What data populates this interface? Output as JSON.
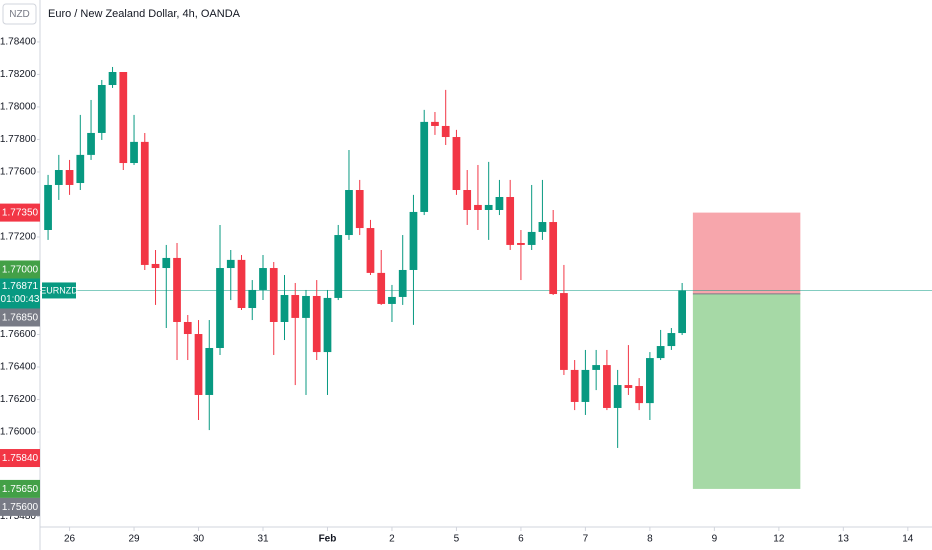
{
  "chart_data": {
    "type": "candlestick",
    "title": "Euro / New Zealand Dollar, 4h, OANDA",
    "axis_currency": "NZD",
    "open": [
      1.77243,
      1.7752,
      1.77612,
      1.77532,
      1.77705,
      1.7784,
      1.78135,
      1.78215,
      1.77655,
      1.77785,
      1.77034,
      1.77009,
      1.77071,
      1.76677,
      1.76603,
      1.76228,
      1.76517,
      1.77009,
      1.77059,
      1.76763,
      1.76874,
      1.77009,
      1.76677,
      1.76843,
      1.76702,
      1.76837,
      1.76492,
      1.76825,
      1.77212,
      1.77489,
      1.77255,
      1.76979,
      1.76788,
      1.76831,
      1.76997,
      1.77354,
      1.77908,
      1.77883,
      1.77815,
      1.77489,
      1.77397,
      1.77366,
      1.77366,
      1.77446,
      1.77163,
      1.77151,
      1.77231,
      1.77292,
      1.76855,
      1.76382,
      1.76185,
      1.76382,
      1.76412,
      1.76148,
      1.76289,
      1.76283,
      1.76178,
      1.76455,
      1.76529,
      1.76609
    ],
    "high": [
      1.77582,
      1.77705,
      1.77674,
      1.77951,
      1.78043,
      1.78166,
      1.78246,
      1.78215,
      1.77951,
      1.7784,
      1.7712,
      1.77151,
      1.77163,
      1.7672,
      1.76689,
      1.76689,
      1.77274,
      1.7712,
      1.77089,
      1.76935,
      1.77089,
      1.77046,
      1.76966,
      1.76917,
      1.76874,
      1.76935,
      1.76874,
      1.77274,
      1.77735,
      1.77551,
      1.77305,
      1.7712,
      1.76905,
      1.77212,
      1.77459,
      1.77982,
      1.77969,
      1.78105,
      1.77859,
      1.77612,
      1.77643,
      1.77662,
      1.77551,
      1.77551,
      1.77243,
      1.7752,
      1.77551,
      1.77366,
      1.77028,
      1.76443,
      1.76505,
      1.76505,
      1.76505,
      1.76382,
      1.76535,
      1.76332,
      1.76492,
      1.76628,
      1.7664,
      1.76917
    ],
    "low": [
      1.77182,
      1.77428,
      1.77459,
      1.77489,
      1.77674,
      1.77797,
      1.78117,
      1.77612,
      1.77643,
      1.76997,
      1.76782,
      1.7664,
      1.76443,
      1.76443,
      1.76074,
      1.76012,
      1.76474,
      1.76812,
      1.76751,
      1.76689,
      1.76812,
      1.76474,
      1.76566,
      1.76289,
      1.76228,
      1.76443,
      1.76228,
      1.76812,
      1.77182,
      1.77212,
      1.76966,
      1.76782,
      1.76677,
      1.76782,
      1.76659,
      1.77335,
      1.77828,
      1.77766,
      1.77459,
      1.77274,
      1.77243,
      1.77182,
      1.77335,
      1.7712,
      1.76935,
      1.7712,
      1.77182,
      1.76843,
      1.76351,
      1.76135,
      1.76105,
      1.76258,
      1.76135,
      1.75902,
      1.76228,
      1.76135,
      1.76074,
      1.76443,
      1.76505,
      1.76597
    ],
    "close": [
      1.7752,
      1.77612,
      1.7752,
      1.77705,
      1.7784,
      1.78135,
      1.78215,
      1.77655,
      1.77785,
      1.77028,
      1.77009,
      1.77071,
      1.76677,
      1.76603,
      1.76228,
      1.76517,
      1.77009,
      1.77059,
      1.76763,
      1.76874,
      1.77009,
      1.76677,
      1.76843,
      1.76702,
      1.76837,
      1.76492,
      1.76825,
      1.77212,
      1.77489,
      1.77255,
      1.76979,
      1.76788,
      1.76831,
      1.76997,
      1.77354,
      1.77908,
      1.77883,
      1.77815,
      1.77489,
      1.77366,
      1.77366,
      1.77397,
      1.77446,
      1.77151,
      1.77151,
      1.77231,
      1.77292,
      1.76849,
      1.76382,
      1.76185,
      1.76382,
      1.76412,
      1.76148,
      1.76289,
      1.76271,
      1.76178,
      1.76455,
      1.76529,
      1.76609,
      1.76871
    ],
    "up_color": "#089981",
    "down_color": "#f23645",
    "xlim": [
      -0.75,
      82.25
    ],
    "xticks": [
      {
        "value": 2,
        "label": "26"
      },
      {
        "value": 8,
        "label": "29"
      },
      {
        "value": 14,
        "label": "30"
      },
      {
        "value": 20,
        "label": "31"
      },
      {
        "value": 26,
        "label": "Feb"
      },
      {
        "value": 32,
        "label": "2"
      },
      {
        "value": 38,
        "label": "5"
      },
      {
        "value": 44,
        "label": "6"
      },
      {
        "value": 50,
        "label": "7"
      },
      {
        "value": 56,
        "label": "8"
      },
      {
        "value": 62,
        "label": "9"
      },
      {
        "value": 68,
        "label": "12"
      },
      {
        "value": 74,
        "label": "13"
      },
      {
        "value": 80,
        "label": "14"
      }
    ],
    "ylim": [
      1.75428,
      1.78658
    ],
    "yticks": [
      {
        "value": 1.784,
        "label": "1.78400"
      },
      {
        "value": 1.782,
        "label": "1.78200"
      },
      {
        "value": 1.78,
        "label": "1.78000"
      },
      {
        "value": 1.778,
        "label": "1.77800"
      },
      {
        "value": 1.776,
        "label": "1.77600"
      },
      {
        "value": 1.772,
        "label": "1.77200"
      },
      {
        "value": 1.766,
        "label": "1.76600"
      },
      {
        "value": 1.764,
        "label": "1.76400"
      },
      {
        "value": 1.762,
        "label": "1.76200"
      },
      {
        "value": 1.76,
        "label": "1.76000"
      },
      {
        "value": 1.7548,
        "label": "1.75480"
      }
    ],
    "last_price": {
      "value": 1.76871,
      "countdown": "01:00:43",
      "symbol": "EURNZD",
      "color": "#089981"
    },
    "position": {
      "start": 60,
      "end": 70,
      "entry": 1.7685,
      "stop": 1.7735,
      "target": 1.7565,
      "loss_color": "#f7a6ac",
      "profit_color": "#a6d9a6"
    },
    "price_labels": [
      {
        "value": 1.7735,
        "label": "1.77350",
        "color": "#f23645"
      },
      {
        "value": 1.77,
        "label": "1.77000",
        "color": "#43a047"
      },
      {
        "value": 1.7685,
        "label": "1.76850",
        "color": "#787b86"
      },
      {
        "value": 1.7584,
        "label": "1.75840",
        "color": "#f23645"
      },
      {
        "value": 1.7565,
        "label": "1.75650",
        "color": "#43a047"
      },
      {
        "value": 1.756,
        "label": "1.75600",
        "color": "#787b86"
      }
    ]
  }
}
